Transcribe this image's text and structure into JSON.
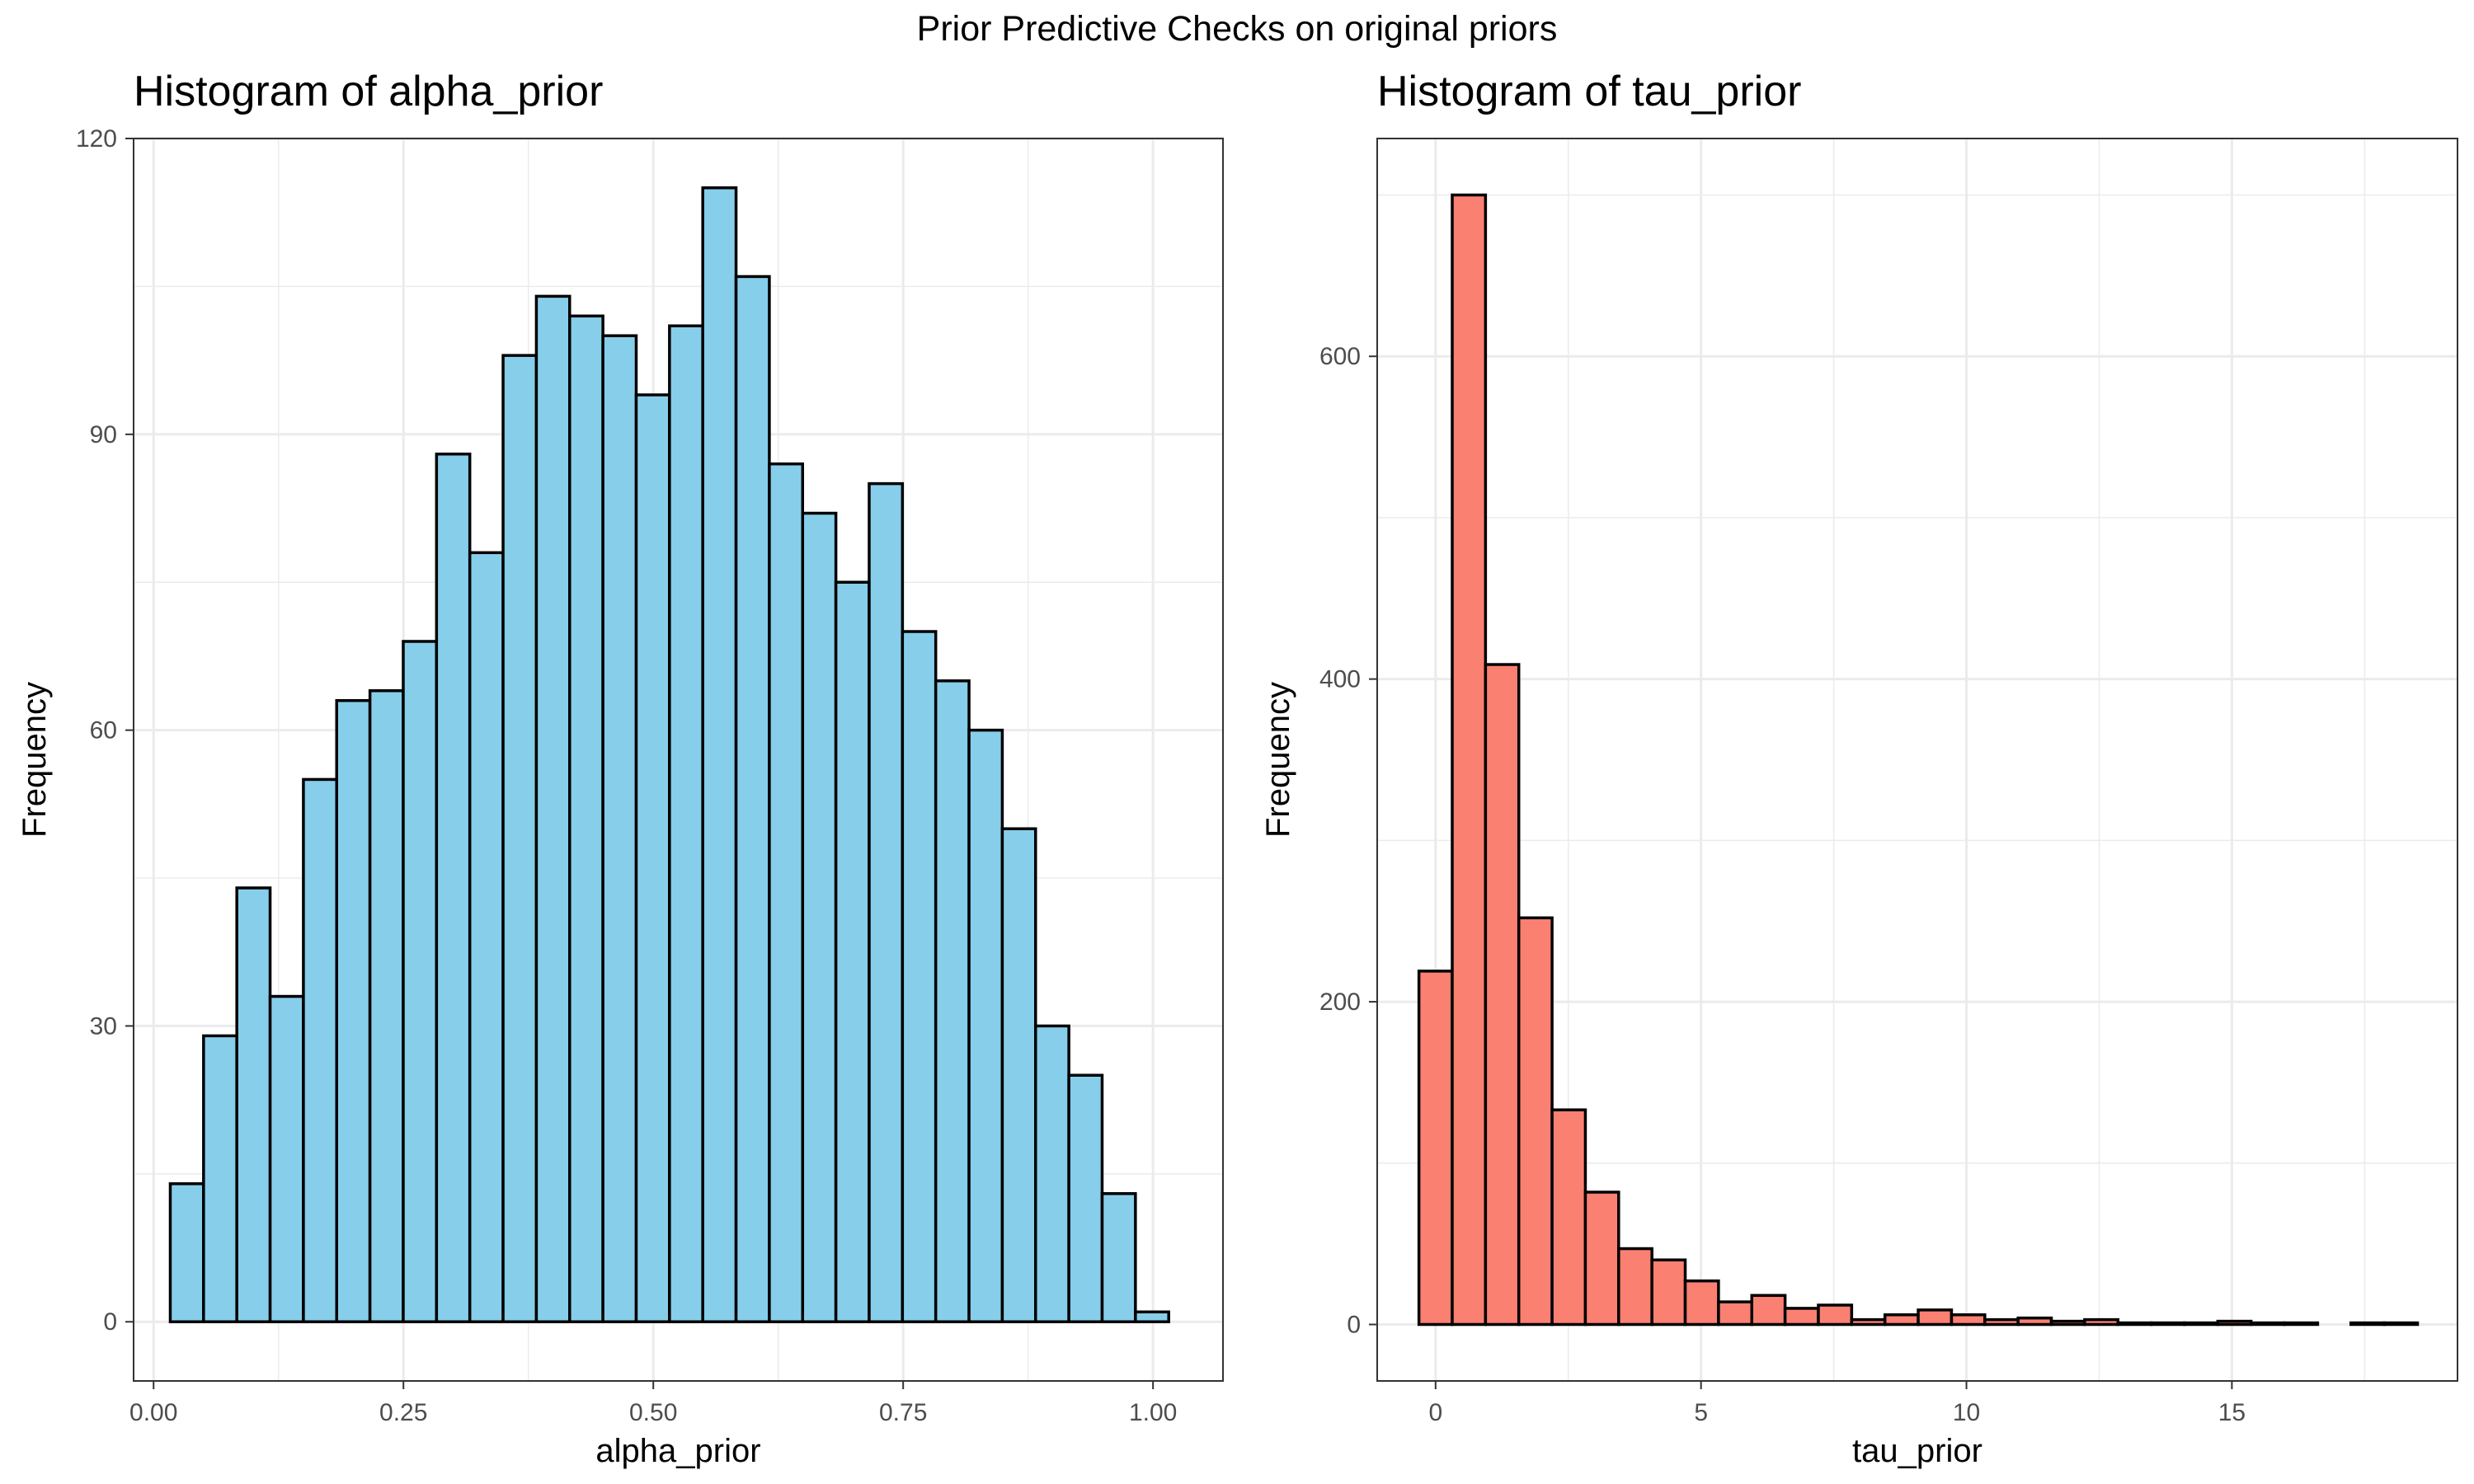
{
  "title": "Prior Predictive Checks on original priors",
  "chart_data": [
    {
      "type": "bar",
      "title": "Histogram of alpha_prior",
      "xlabel": "alpha_prior",
      "ylabel": "Frequency",
      "xlim": [
        -0.02,
        1.07
      ],
      "ylim": [
        -6,
        120
      ],
      "bin_width": 0.0333,
      "bin_start": 0.0167,
      "values": [
        14,
        29,
        44,
        33,
        55,
        63,
        64,
        69,
        88,
        78,
        98,
        104,
        102,
        100,
        94,
        101,
        115,
        106,
        87,
        82,
        75,
        85,
        70,
        65,
        60,
        50,
        30,
        25,
        13,
        1
      ],
      "xticks": [
        0,
        0.25,
        0.5,
        0.75,
        1
      ],
      "xtick_labels": [
        "0.00",
        "0.25",
        "0.50",
        "0.75",
        "1.00"
      ],
      "yticks": [
        0,
        30,
        60,
        90,
        120
      ],
      "ytick_labels": [
        "0",
        "30",
        "60",
        "90",
        "120"
      ],
      "fill_color": "#87CEEB",
      "edge_color": "#000000",
      "grid": true
    },
    {
      "type": "bar",
      "title": "Histogram of tau_prior",
      "xlabel": "tau_prior",
      "ylabel": "Frequency",
      "xlim": [
        -1.1,
        19.25
      ],
      "ylim": [
        -35,
        735
      ],
      "bin_width": 0.627,
      "bin_start": -0.3135,
      "values": [
        219,
        700,
        409,
        252,
        133,
        82,
        47,
        40,
        27,
        14,
        18,
        10,
        12,
        3,
        6,
        9,
        6,
        3,
        4,
        2,
        3,
        1,
        1,
        1,
        2,
        1,
        1,
        0,
        1,
        1
      ],
      "xticks": [
        0,
        5,
        10,
        15
      ],
      "xtick_labels": [
        "0",
        "5",
        "10",
        "15"
      ],
      "yticks": [
        0,
        200,
        400,
        600
      ],
      "ytick_labels": [
        "0",
        "200",
        "400",
        "600"
      ],
      "fill_color": "#FA8072",
      "edge_color": "#000000",
      "grid": true
    }
  ]
}
